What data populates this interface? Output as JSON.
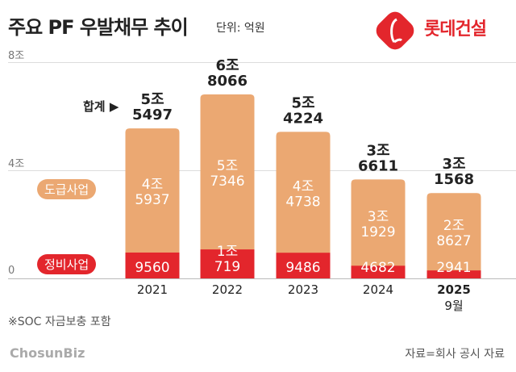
{
  "header": {
    "title": "주요 PF 우발채무 추이",
    "unit": "단위: 억원",
    "brand": "롯데건설",
    "brand_color": "#e3262c"
  },
  "chart_data": {
    "type": "bar",
    "stacked": true,
    "categories": [
      "2021",
      "2022",
      "2023",
      "2024",
      "2025"
    ],
    "category_sublabels": [
      "",
      "",
      "",
      "",
      "9월"
    ],
    "yticks": [
      "8조",
      "4조",
      "0"
    ],
    "ylim": [
      0,
      80000
    ],
    "grid": true,
    "series": [
      {
        "name": "정비사업",
        "color": "#e3262c",
        "values": [
          9560,
          10719,
          9486,
          4682,
          2941
        ],
        "labels": [
          "9560",
          "1조\n719",
          "9486",
          "4682",
          "2941"
        ]
      },
      {
        "name": "도급사업",
        "color": "#eba872",
        "values": [
          45937,
          57346,
          44738,
          31929,
          28627
        ],
        "labels": [
          "4조\n5937",
          "5조\n7346",
          "4조\n4738",
          "3조\n1929",
          "2조\n8627"
        ]
      }
    ],
    "totals": [
      55497,
      68066,
      54224,
      36611,
      31568
    ],
    "total_labels": [
      "5조\n5497",
      "6조\n8066",
      "5조\n4224",
      "3조\n6611",
      "3조\n1568"
    ],
    "total_label_name": "합계 ▶"
  },
  "footer": {
    "note": "※SOC 자금보충 포함",
    "source": "자료=회사 공시 자료",
    "credit": "ChosunBiz"
  }
}
